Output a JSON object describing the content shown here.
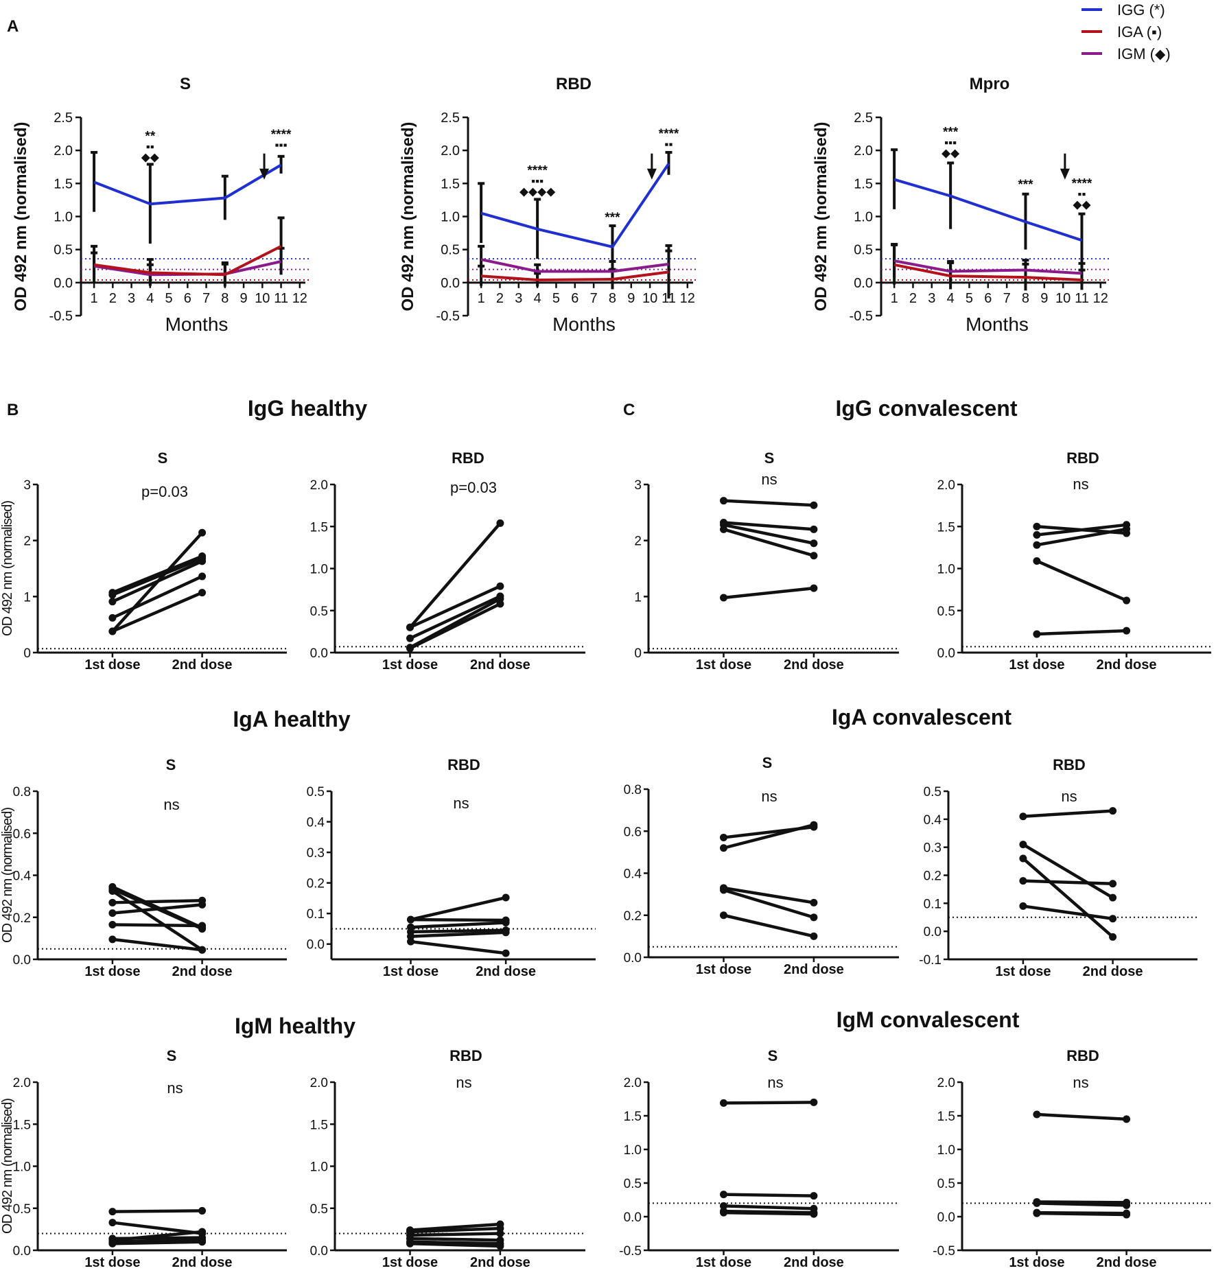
{
  "figure": {
    "panel_labels": [
      "A",
      "B",
      "C"
    ],
    "group_titles": {
      "igg_healthy": "IgG healthy",
      "igg_convalescent": "IgG convalescent",
      "iga_healthy": "IgA healthy",
      "iga_convalescent": "IgA convalescent",
      "igm_healthy": "IgM healthy",
      "igm_convalescent": "IgM convalescent"
    },
    "legend": [
      {
        "label": "IGG (*)",
        "color": "#1f2fd0"
      },
      {
        "label": "IGA (▪)",
        "color": "#b3121a"
      },
      {
        "label": "IGM (⬥)",
        "color": "#8b1a8b"
      }
    ]
  },
  "chart_data": [
    {
      "id": "A-S",
      "type": "line",
      "title": "S",
      "xlabel": "Months",
      "ylabel": "OD 492 nm (normalised)",
      "x_ticks": [
        1,
        2,
        3,
        4,
        5,
        6,
        7,
        8,
        9,
        10,
        11,
        12
      ],
      "y_ticks": [
        "-0.5",
        "0.0",
        "0.5",
        "1.0",
        "1.5",
        "2.0",
        "2.5"
      ],
      "xlim": [
        0.3,
        12.3
      ],
      "ylim": [
        -0.5,
        2.5
      ],
      "x": [
        1,
        4,
        8,
        11
      ],
      "series": [
        {
          "name": "IGG",
          "color": "#1f2fd0",
          "values": [
            1.52,
            1.19,
            1.28,
            1.78
          ],
          "err": [
            0.45,
            0.6,
            0.33,
            0.13
          ]
        },
        {
          "name": "IGA",
          "color": "#b3121a",
          "values": [
            0.27,
            0.15,
            0.12,
            0.55
          ],
          "err": [
            0.28,
            0.2,
            0.18,
            0.43
          ]
        },
        {
          "name": "IGM",
          "color": "#8b1a8b",
          "values": [
            0.25,
            0.12,
            0.13,
            0.32
          ],
          "err": [
            0.2,
            0.15,
            0.15,
            0.2
          ]
        }
      ],
      "thresholds": [
        {
          "value": 0.36,
          "color": "#1f2fd0"
        },
        {
          "value": 0.2,
          "color": "#8b1a8b"
        },
        {
          "value": 0.04,
          "color": "#b3121a"
        }
      ],
      "annotations": [
        {
          "x": 4,
          "y": 1.78,
          "lines": [
            "**",
            "▪▪",
            "◆◆"
          ]
        },
        {
          "x": 11,
          "y": 1.96,
          "lines": [
            "****",
            "▪▪▪"
          ]
        }
      ],
      "arrow_x": 10.1
    },
    {
      "id": "A-RBD",
      "type": "line",
      "title": "RBD",
      "xlabel": "Months",
      "ylabel": "OD 492 nm (normalised)",
      "x_ticks": [
        1,
        2,
        3,
        4,
        5,
        6,
        7,
        8,
        9,
        10,
        11,
        12
      ],
      "y_ticks": [
        "-0.5",
        "0.0",
        "0.5",
        "1.0",
        "1.5",
        "2.0",
        "2.5"
      ],
      "xlim": [
        0.3,
        12.3
      ],
      "ylim": [
        -0.5,
        2.5
      ],
      "x": [
        1,
        4,
        8,
        11
      ],
      "series": [
        {
          "name": "IGG",
          "color": "#1f2fd0",
          "values": [
            1.05,
            0.81,
            0.54,
            1.8
          ],
          "err": [
            0.45,
            0.45,
            0.32,
            0.17
          ]
        },
        {
          "name": "IGA",
          "color": "#b3121a",
          "values": [
            0.1,
            0.04,
            0.05,
            0.16
          ],
          "err": [
            0.15,
            0.1,
            0.15,
            0.4
          ]
        },
        {
          "name": "IGM",
          "color": "#8b1a8b",
          "values": [
            0.35,
            0.17,
            0.17,
            0.28
          ],
          "err": [
            0.2,
            0.1,
            0.15,
            0.2
          ]
        }
      ],
      "thresholds": [
        {
          "value": 0.36,
          "color": "#1f2fd0"
        },
        {
          "value": 0.2,
          "color": "#8b1a8b"
        },
        {
          "value": 0.04,
          "color": "#b3121a"
        }
      ],
      "annotations": [
        {
          "x": 4,
          "y": 1.26,
          "lines": [
            "****",
            "▪▪▪",
            "◆◆◆◆"
          ]
        },
        {
          "x": 8,
          "y": 0.86,
          "lines": [
            "***"
          ]
        },
        {
          "x": 11,
          "y": 1.97,
          "lines": [
            "****",
            "▪▪"
          ]
        }
      ],
      "arrow_x": 10.1
    },
    {
      "id": "A-Mpro",
      "type": "line",
      "title": "Mpro",
      "xlabel": "Months",
      "ylabel": "OD 492 nm (normalised)",
      "x_ticks": [
        1,
        2,
        3,
        4,
        5,
        6,
        7,
        8,
        9,
        10,
        11,
        12
      ],
      "y_ticks": [
        "-0.5",
        "0.0",
        "0.5",
        "1.0",
        "1.5",
        "2.0",
        "2.5"
      ],
      "xlim": [
        0.3,
        12.3
      ],
      "ylim": [
        -0.5,
        2.5
      ],
      "x": [
        1,
        4,
        8,
        11
      ],
      "series": [
        {
          "name": "IGG",
          "color": "#1f2fd0",
          "values": [
            1.56,
            1.31,
            0.92,
            0.64
          ],
          "err": [
            0.45,
            0.5,
            0.42,
            0.4
          ]
        },
        {
          "name": "IGA",
          "color": "#b3121a",
          "values": [
            0.27,
            0.1,
            0.08,
            0.04
          ],
          "err": [
            0.3,
            0.2,
            0.2,
            0.15
          ]
        },
        {
          "name": "IGM",
          "color": "#8b1a8b",
          "values": [
            0.33,
            0.17,
            0.19,
            0.14
          ],
          "err": [
            0.25,
            0.15,
            0.15,
            0.15
          ]
        }
      ],
      "thresholds": [
        {
          "value": 0.36,
          "color": "#1f2fd0"
        },
        {
          "value": 0.2,
          "color": "#8b1a8b"
        },
        {
          "value": 0.04,
          "color": "#b3121a"
        }
      ],
      "annotations": [
        {
          "x": 4,
          "y": 1.84,
          "lines": [
            "***",
            "▪▪▪",
            "◆◆"
          ]
        },
        {
          "x": 8,
          "y": 1.36,
          "lines": [
            "***"
          ]
        },
        {
          "x": 11,
          "y": 1.06,
          "lines": [
            "****",
            "▪▪",
            "◆◆"
          ]
        }
      ],
      "arrow_x": 10.1
    },
    {
      "id": "B-IgG-S",
      "type": "line",
      "title": "S",
      "stat": "p=0.03",
      "ylabel": "OD 492 nm (normalised)",
      "categories": [
        "1st dose",
        "2nd dose"
      ],
      "ylim": [
        0,
        3
      ],
      "y_ticks": [
        "0",
        "1",
        "2",
        "3"
      ],
      "threshold": 0.07,
      "pairs": [
        [
          1.07,
          1.72
        ],
        [
          1.03,
          1.68
        ],
        [
          0.91,
          1.63
        ],
        [
          0.62,
          1.36
        ],
        [
          0.38,
          1.07
        ],
        [
          0.38,
          2.14
        ]
      ]
    },
    {
      "id": "B-IgG-RBD",
      "type": "line",
      "title": "RBD",
      "stat": "p=0.03",
      "categories": [
        "1st dose",
        "2nd dose"
      ],
      "ylim": [
        0,
        2.0
      ],
      "y_ticks": [
        "0.0",
        "0.5",
        "1.0",
        "1.5",
        "2.0"
      ],
      "threshold": 0.07,
      "pairs": [
        [
          0.3,
          1.54
        ],
        [
          0.3,
          0.79
        ],
        [
          0.17,
          0.67
        ],
        [
          0.06,
          0.64
        ],
        [
          0.05,
          0.58
        ]
      ]
    },
    {
      "id": "C-IgG-S",
      "type": "line",
      "title": "S",
      "stat": "ns",
      "categories": [
        "1st dose",
        "2nd dose"
      ],
      "ylim": [
        0,
        3
      ],
      "y_ticks": [
        "0",
        "1",
        "2",
        "3"
      ],
      "threshold": 0.07,
      "pairs": [
        [
          2.71,
          2.63
        ],
        [
          2.32,
          2.2
        ],
        [
          2.28,
          1.95
        ],
        [
          2.2,
          1.73
        ],
        [
          0.98,
          1.15
        ]
      ]
    },
    {
      "id": "C-IgG-RBD",
      "type": "line",
      "title": "RBD",
      "stat": "ns",
      "categories": [
        "1st dose",
        "2nd dose"
      ],
      "ylim": [
        0,
        2.0
      ],
      "y_ticks": [
        "0.0",
        "0.5",
        "1.0",
        "1.5",
        "2.0"
      ],
      "threshold": 0.07,
      "pairs": [
        [
          1.5,
          1.42
        ],
        [
          1.4,
          1.52
        ],
        [
          1.28,
          1.47
        ],
        [
          1.09,
          0.62
        ],
        [
          0.22,
          0.26
        ]
      ]
    },
    {
      "id": "B-IgA-S",
      "type": "line",
      "title": "S",
      "stat": "ns",
      "ylabel": "OD 492 nm (normalised)",
      "categories": [
        "1st dose",
        "2nd dose"
      ],
      "ylim": [
        0,
        0.8
      ],
      "y_ticks": [
        "0.0",
        "0.2",
        "0.4",
        "0.6",
        "0.8"
      ],
      "threshold": 0.05,
      "pairs": [
        [
          0.345,
          0.15
        ],
        [
          0.335,
          0.145
        ],
        [
          0.325,
          0.045
        ],
        [
          0.27,
          0.28
        ],
        [
          0.22,
          0.26
        ],
        [
          0.165,
          0.16
        ],
        [
          0.095,
          0.045
        ]
      ]
    },
    {
      "id": "B-IgA-RBD",
      "type": "line",
      "title": "RBD",
      "stat": "ns",
      "categories": [
        "1st dose",
        "2nd dose"
      ],
      "ylim": [
        -0.05,
        0.5
      ],
      "y_ticks": [
        "0.0",
        "0.1",
        "0.2",
        "0.3",
        "0.4",
        "0.5"
      ],
      "threshold": 0.05,
      "pairs": [
        [
          0.08,
          0.152
        ],
        [
          0.08,
          0.078
        ],
        [
          0.055,
          0.07
        ],
        [
          0.04,
          0.045
        ],
        [
          0.025,
          0.038
        ],
        [
          0.008,
          -0.03
        ]
      ]
    },
    {
      "id": "C-IgA-S",
      "type": "line",
      "title": "S",
      "stat": "ns",
      "categories": [
        "1st dose",
        "2nd dose"
      ],
      "ylim": [
        0,
        0.8
      ],
      "y_ticks": [
        "0.0",
        "0.2",
        "0.4",
        "0.6",
        "0.8"
      ],
      "threshold": 0.05,
      "pairs": [
        [
          0.57,
          0.62
        ],
        [
          0.52,
          0.63
        ],
        [
          0.33,
          0.26
        ],
        [
          0.32,
          0.19
        ],
        [
          0.2,
          0.1
        ]
      ]
    },
    {
      "id": "C-IgA-RBD",
      "type": "line",
      "title": "RBD",
      "stat": "ns",
      "categories": [
        "1st dose",
        "2nd dose"
      ],
      "ylim": [
        -0.1,
        0.5
      ],
      "y_ticks": [
        "-0.1",
        "0.0",
        "0.1",
        "0.2",
        "0.3",
        "0.4",
        "0.5"
      ],
      "threshold": 0.05,
      "pairs": [
        [
          0.41,
          0.43
        ],
        [
          0.31,
          0.12
        ],
        [
          0.26,
          -0.02
        ],
        [
          0.18,
          0.17
        ],
        [
          0.09,
          0.045
        ]
      ]
    },
    {
      "id": "B-IgM-S",
      "type": "line",
      "title": "S",
      "stat": "ns",
      "ylabel": "OD 492 nm (normalised)",
      "categories": [
        "1st dose",
        "2nd dose"
      ],
      "ylim": [
        0,
        2.0
      ],
      "y_ticks": [
        "0.0",
        "0.5",
        "1.0",
        "1.5",
        "2.0"
      ],
      "threshold": 0.2,
      "pairs": [
        [
          0.46,
          0.47
        ],
        [
          0.33,
          0.2
        ],
        [
          0.14,
          0.15
        ],
        [
          0.12,
          0.22
        ],
        [
          0.1,
          0.12
        ],
        [
          0.08,
          0.1
        ]
      ]
    },
    {
      "id": "B-IgM-RBD",
      "type": "line",
      "title": "RBD",
      "stat": "ns",
      "categories": [
        "1st dose",
        "2nd dose"
      ],
      "ylim": [
        0,
        2.0
      ],
      "y_ticks": [
        "0.0",
        "0.5",
        "1.0",
        "1.5",
        "2.0"
      ],
      "threshold": 0.2,
      "pairs": [
        [
          0.24,
          0.31
        ],
        [
          0.22,
          0.26
        ],
        [
          0.18,
          0.2
        ],
        [
          0.14,
          0.12
        ],
        [
          0.1,
          0.08
        ],
        [
          0.08,
          0.05
        ]
      ]
    },
    {
      "id": "C-IgM-S",
      "type": "line",
      "title": "S",
      "stat": "ns",
      "categories": [
        "1st dose",
        "2nd dose"
      ],
      "ylim": [
        -0.5,
        2.0
      ],
      "y_ticks": [
        "-0.5",
        "0.0",
        "0.5",
        "1.0",
        "1.5",
        "2.0"
      ],
      "threshold": 0.2,
      "pairs": [
        [
          1.69,
          1.7
        ],
        [
          0.33,
          0.31
        ],
        [
          0.16,
          0.12
        ],
        [
          0.08,
          0.06
        ],
        [
          0.06,
          0.04
        ]
      ]
    },
    {
      "id": "C-IgM-RBD",
      "type": "line",
      "title": "RBD",
      "stat": "ns",
      "categories": [
        "1st dose",
        "2nd dose"
      ],
      "ylim": [
        -0.5,
        2.0
      ],
      "y_ticks": [
        "-0.5",
        "0.0",
        "0.5",
        "1.0",
        "1.5",
        "2.0"
      ],
      "threshold": 0.2,
      "pairs": [
        [
          1.52,
          1.45
        ],
        [
          0.22,
          0.21
        ],
        [
          0.2,
          0.17
        ],
        [
          0.06,
          0.05
        ],
        [
          0.05,
          0.03
        ]
      ]
    }
  ]
}
